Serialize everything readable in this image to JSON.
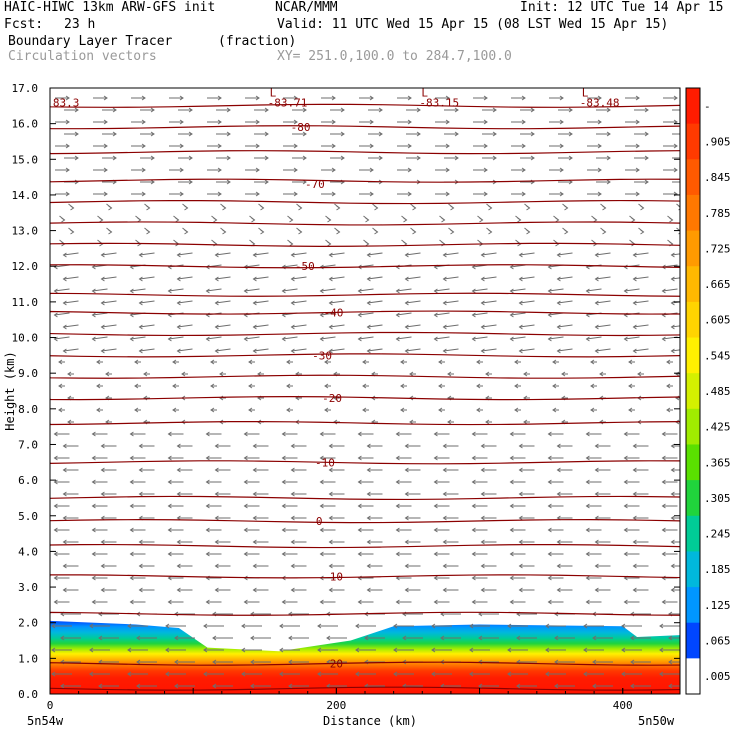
{
  "header": {
    "model": "HAIC-HIWC 13km ARW-GFS init",
    "org": "NCAR/MMM",
    "init": "Init: 12 UTC Tue 14 Apr 15",
    "fcst_label": "Fcst:",
    "fcst_value": "23 h",
    "valid": "Valid: 11 UTC Wed 15 Apr 15 (08 LST Wed 15 Apr 15)",
    "field": "Boundary Layer Tracer",
    "field_units": "(fraction)",
    "vectors": "Circulation vectors",
    "xy": "XY= 251.0,100.0 to 284.7,100.0"
  },
  "chart_data": {
    "type": "heatmap",
    "xlabel": "Distance (km)",
    "ylabel": "Height (km)",
    "xlim": [
      0,
      440
    ],
    "ylim": [
      0,
      17
    ],
    "x_ticks": [
      0,
      200,
      400
    ],
    "x_tick_labels": [
      "0",
      "200",
      "400"
    ],
    "x_end_labels": [
      "5n54w",
      "5n50w"
    ],
    "y_ticks": [
      0,
      1,
      2,
      3,
      4,
      5,
      6,
      7,
      8,
      9,
      10,
      11,
      12,
      13,
      14,
      15,
      16,
      17
    ],
    "y_tick_labels": [
      "0.0",
      "1.0",
      "2.0",
      "3.0",
      "4.0",
      "5.0",
      "6.0",
      "7.0",
      "8.0",
      "9.0",
      "10.0",
      "11.0",
      "12.0",
      "13.0",
      "14.0",
      "15.0",
      "16.0",
      "17.0"
    ],
    "tracer_top_km": [
      [
        0,
        2.05
      ],
      [
        60,
        1.95
      ],
      [
        90,
        1.85
      ],
      [
        110,
        1.3
      ],
      [
        160,
        1.2
      ],
      [
        210,
        1.5
      ],
      [
        240,
        1.9
      ],
      [
        300,
        1.95
      ],
      [
        400,
        1.9
      ],
      [
        410,
        1.6
      ],
      [
        440,
        1.65
      ]
    ],
    "colorbar": {
      "labels": [
        "-",
        ".905",
        ".845",
        ".785",
        ".725",
        ".665",
        ".605",
        ".545",
        ".485",
        ".425",
        ".365",
        ".305",
        ".245",
        ".185",
        ".125",
        ".065",
        ".005"
      ],
      "colors": [
        "#ff1c00",
        "#ff3a00",
        "#ff5a00",
        "#ff7800",
        "#ff9a00",
        "#ffb800",
        "#ffd400",
        "#fff000",
        "#d4f000",
        "#a0ec00",
        "#5ae000",
        "#20d43c",
        "#00cc96",
        "#00b8dc",
        "#0096ff",
        "#0046ff",
        "#ffffff"
      ]
    },
    "contour_labels": [
      {
        "text": "-80",
        "x": 175,
        "y": 15.9
      },
      {
        "text": "-70",
        "x": 185,
        "y": 14.3
      },
      {
        "text": "-50",
        "x": 178,
        "y": 12.0
      },
      {
        "text": "-40",
        "x": 198,
        "y": 10.7
      },
      {
        "text": "-30",
        "x": 190,
        "y": 9.5
      },
      {
        "text": "-20",
        "x": 197,
        "y": 8.3
      },
      {
        "text": "-10",
        "x": 192,
        "y": 6.5
      },
      {
        "text": "0",
        "x": 188,
        "y": 4.85
      },
      {
        "text": "10",
        "x": 200,
        "y": 3.3
      },
      {
        "text": "20",
        "x": 200,
        "y": 0.85
      }
    ],
    "extrema": [
      {
        "mark": "",
        "value": "83.3",
        "x": 2,
        "y": 16.6
      },
      {
        "mark": "L",
        "value": "-83.71",
        "x": 152,
        "y": 16.6
      },
      {
        "mark": "L",
        "value": "-83.15",
        "x": 258,
        "y": 16.6
      },
      {
        "mark": "L",
        "value": "-83.48",
        "x": 370,
        "y": 16.6
      }
    ]
  }
}
